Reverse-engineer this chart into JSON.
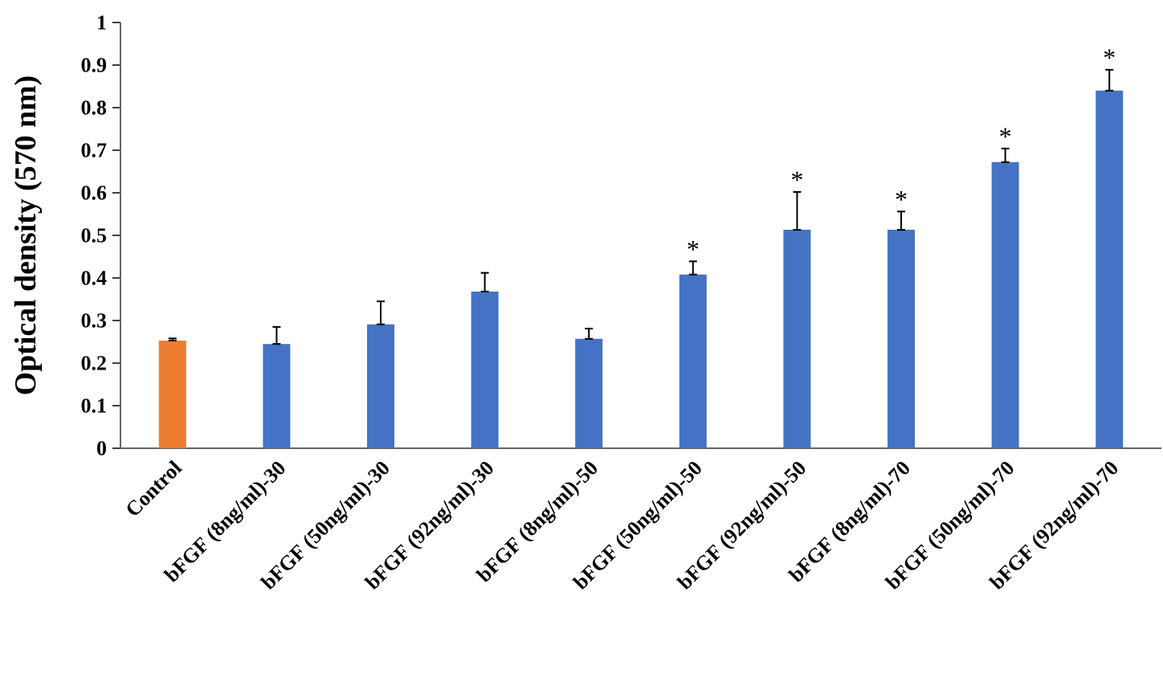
{
  "chart_data": {
    "type": "bar",
    "ylabel": "Optical density (570 nm)",
    "categories": [
      "Control",
      "bFGF (8ng/ml)-30",
      "bFGF (50ng/ml)-30",
      "bFGF (92ng/ml)-30",
      "bFGF (8ng/ml)-50",
      "bFGF (50ng/ml)-50",
      "bFGF (92ng/ml)-50",
      "bFGF (8ng/ml)-70",
      "bFGF (50ng/ml)-70",
      "bFGF (92ng/ml)-70"
    ],
    "values": [
      0.253,
      0.245,
      0.291,
      0.368,
      0.257,
      0.408,
      0.513,
      0.513,
      0.672,
      0.84
    ],
    "errors": [
      [
        0.253,
        0.258
      ],
      [
        0.245,
        0.285
      ],
      [
        0.291,
        0.345
      ],
      [
        0.368,
        0.412
      ],
      [
        0.257,
        0.281
      ],
      [
        0.408,
        0.439
      ],
      [
        0.513,
        0.602
      ],
      [
        0.513,
        0.556
      ],
      [
        0.672,
        0.704
      ],
      [
        0.84,
        0.889
      ]
    ],
    "colors": [
      "#ed7d31",
      "#4472c4",
      "#4472c4",
      "#4472c4",
      "#4472c4",
      "#4472c4",
      "#4472c4",
      "#4472c4",
      "#4472c4",
      "#4472c4"
    ],
    "ylim": [
      0,
      1
    ],
    "yticks": [
      0,
      0.1,
      0.2,
      0.3,
      0.4,
      0.5,
      0.6,
      0.7,
      0.8,
      0.9,
      1
    ],
    "value_labels": [
      null,
      null,
      null,
      null,
      null,
      "*",
      "*",
      "*",
      "*",
      "*"
    ],
    "grid": false
  }
}
